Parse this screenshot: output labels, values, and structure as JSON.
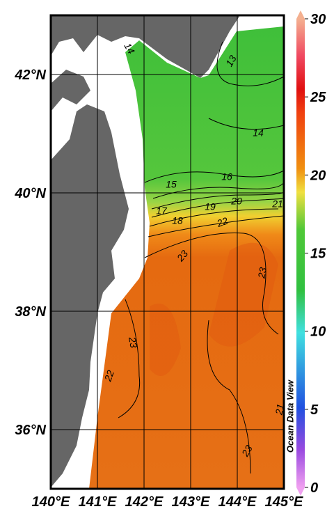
{
  "map": {
    "xlim": [
      140,
      145
    ],
    "ylim": [
      35,
      43
    ],
    "xticks": [
      {
        "value": 140,
        "label": "140°E"
      },
      {
        "value": 141,
        "label": "141°E"
      },
      {
        "value": 142,
        "label": "142°E"
      },
      {
        "value": 143,
        "label": "143°E"
      },
      {
        "value": 144,
        "label": "144°E"
      },
      {
        "value": 145,
        "label": "145°E"
      }
    ],
    "yticks": [
      {
        "value": 36,
        "label": "36°N"
      },
      {
        "value": 38,
        "label": "38°N"
      },
      {
        "value": 40,
        "label": "40°N"
      },
      {
        "value": 42,
        "label": "42°N"
      }
    ],
    "colorbar": {
      "lim": [
        0,
        30
      ],
      "ticks": [
        0,
        5,
        10,
        15,
        20,
        25,
        30
      ]
    },
    "contour_labels": [
      14,
      13,
      14,
      15,
      16,
      17,
      18,
      19,
      20,
      21,
      22,
      23,
      23,
      23,
      22,
      21,
      23
    ],
    "watermark": "Ocean Data View"
  }
}
